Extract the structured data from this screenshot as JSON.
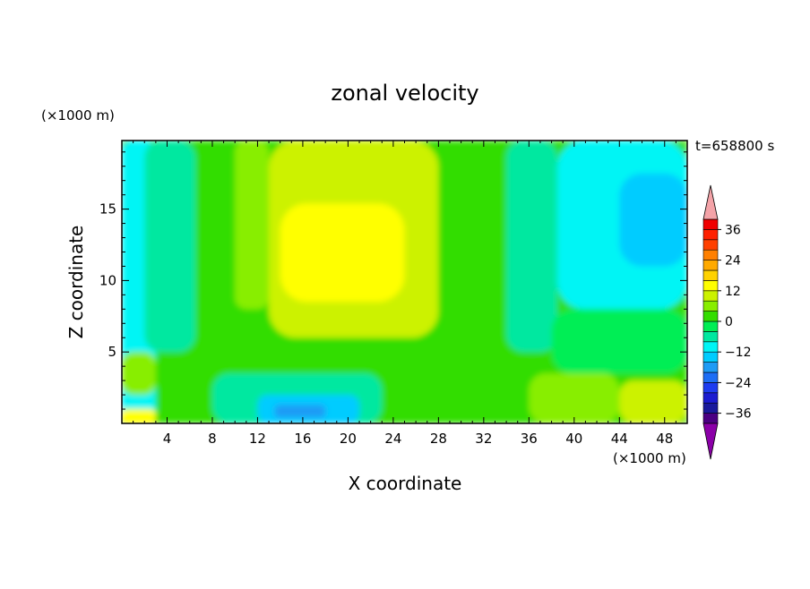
{
  "chart_data": {
    "type": "heatmap",
    "title": "zonal velocity",
    "xlabel": "X coordinate",
    "ylabel": "Z coordinate",
    "x_unit": "(×1000 m)",
    "y_unit": "(×1000 m)",
    "time_label": "t=658800 s",
    "xlim": [
      0,
      50
    ],
    "ylim": [
      0,
      19.8
    ],
    "x_ticks": [
      4,
      8,
      12,
      16,
      20,
      24,
      28,
      32,
      36,
      40,
      44,
      48
    ],
    "y_ticks": [
      5,
      10,
      15
    ],
    "colorbar": {
      "levels": [
        -40,
        -36,
        -32,
        -28,
        -24,
        -20,
        -16,
        -12,
        -8,
        -4,
        0,
        4,
        8,
        12,
        16,
        20,
        24,
        28,
        32,
        36,
        40
      ],
      "colors": [
        "#4b0082",
        "#1a1a9c",
        "#1c1cd0",
        "#1e3cf0",
        "#1e6ef5",
        "#1e9bf5",
        "#00ccff",
        "#00f5f5",
        "#00e8a0",
        "#00ee55",
        "#33dd00",
        "#88ee00",
        "#ccf200",
        "#ffff00",
        "#ffd200",
        "#ffaa00",
        "#ff8000",
        "#ff4000",
        "#ff2000",
        "#f00000"
      ],
      "tick_labels": [
        36,
        24,
        12,
        0,
        -12,
        -24,
        -36
      ],
      "over_color": "#f4a3a8",
      "under_color": "#8b00a8"
    },
    "fields": [
      {
        "x": [
          0,
          50
        ],
        "y": [
          0,
          19.8
        ],
        "value": 2
      },
      {
        "x": [
          0,
          3
        ],
        "y": [
          0,
          19.8
        ],
        "value": -10
      },
      {
        "x": [
          2,
          6.5
        ],
        "y": [
          5,
          19.8
        ],
        "value": -6
      },
      {
        "x": [
          8,
          10.5
        ],
        "y": [
          6,
          19.8
        ],
        "value": 2
      },
      {
        "x": [
          10,
          13
        ],
        "y": [
          8,
          19.8
        ],
        "value": 6
      },
      {
        "x": [
          13,
          28
        ],
        "y": [
          6,
          19.8
        ],
        "value": 10
      },
      {
        "x": [
          14,
          25
        ],
        "y": [
          8.5,
          15.4
        ],
        "value": 14
      },
      {
        "x": [
          28,
          34
        ],
        "y": [
          5,
          19.8
        ],
        "value": 2
      },
      {
        "x": [
          34,
          38.5
        ],
        "y": [
          5,
          19.8
        ],
        "value": -6
      },
      {
        "x": [
          38.5,
          50
        ],
        "y": [
          8,
          19.8
        ],
        "value": -10
      },
      {
        "x": [
          44,
          50
        ],
        "y": [
          11,
          17.5
        ],
        "value": -14
      },
      {
        "x": [
          38,
          50
        ],
        "y": [
          3.5,
          8
        ],
        "value": -4
      },
      {
        "x": [
          36,
          44
        ],
        "y": [
          0,
          3.5
        ],
        "value": 6
      },
      {
        "x": [
          44,
          50
        ],
        "y": [
          0,
          3
        ],
        "value": 10
      },
      {
        "x": [
          0,
          3
        ],
        "y": [
          2,
          5
        ],
        "value": 6
      },
      {
        "x": [
          0,
          3
        ],
        "y": [
          0,
          1
        ],
        "value": 14
      },
      {
        "x": [
          8,
          23
        ],
        "y": [
          0,
          3.5
        ],
        "value": -8
      },
      {
        "x": [
          12,
          21
        ],
        "y": [
          0,
          2
        ],
        "value": -14
      },
      {
        "x": [
          13.5,
          18
        ],
        "y": [
          0.4,
          1.3
        ],
        "value": -20
      }
    ]
  }
}
